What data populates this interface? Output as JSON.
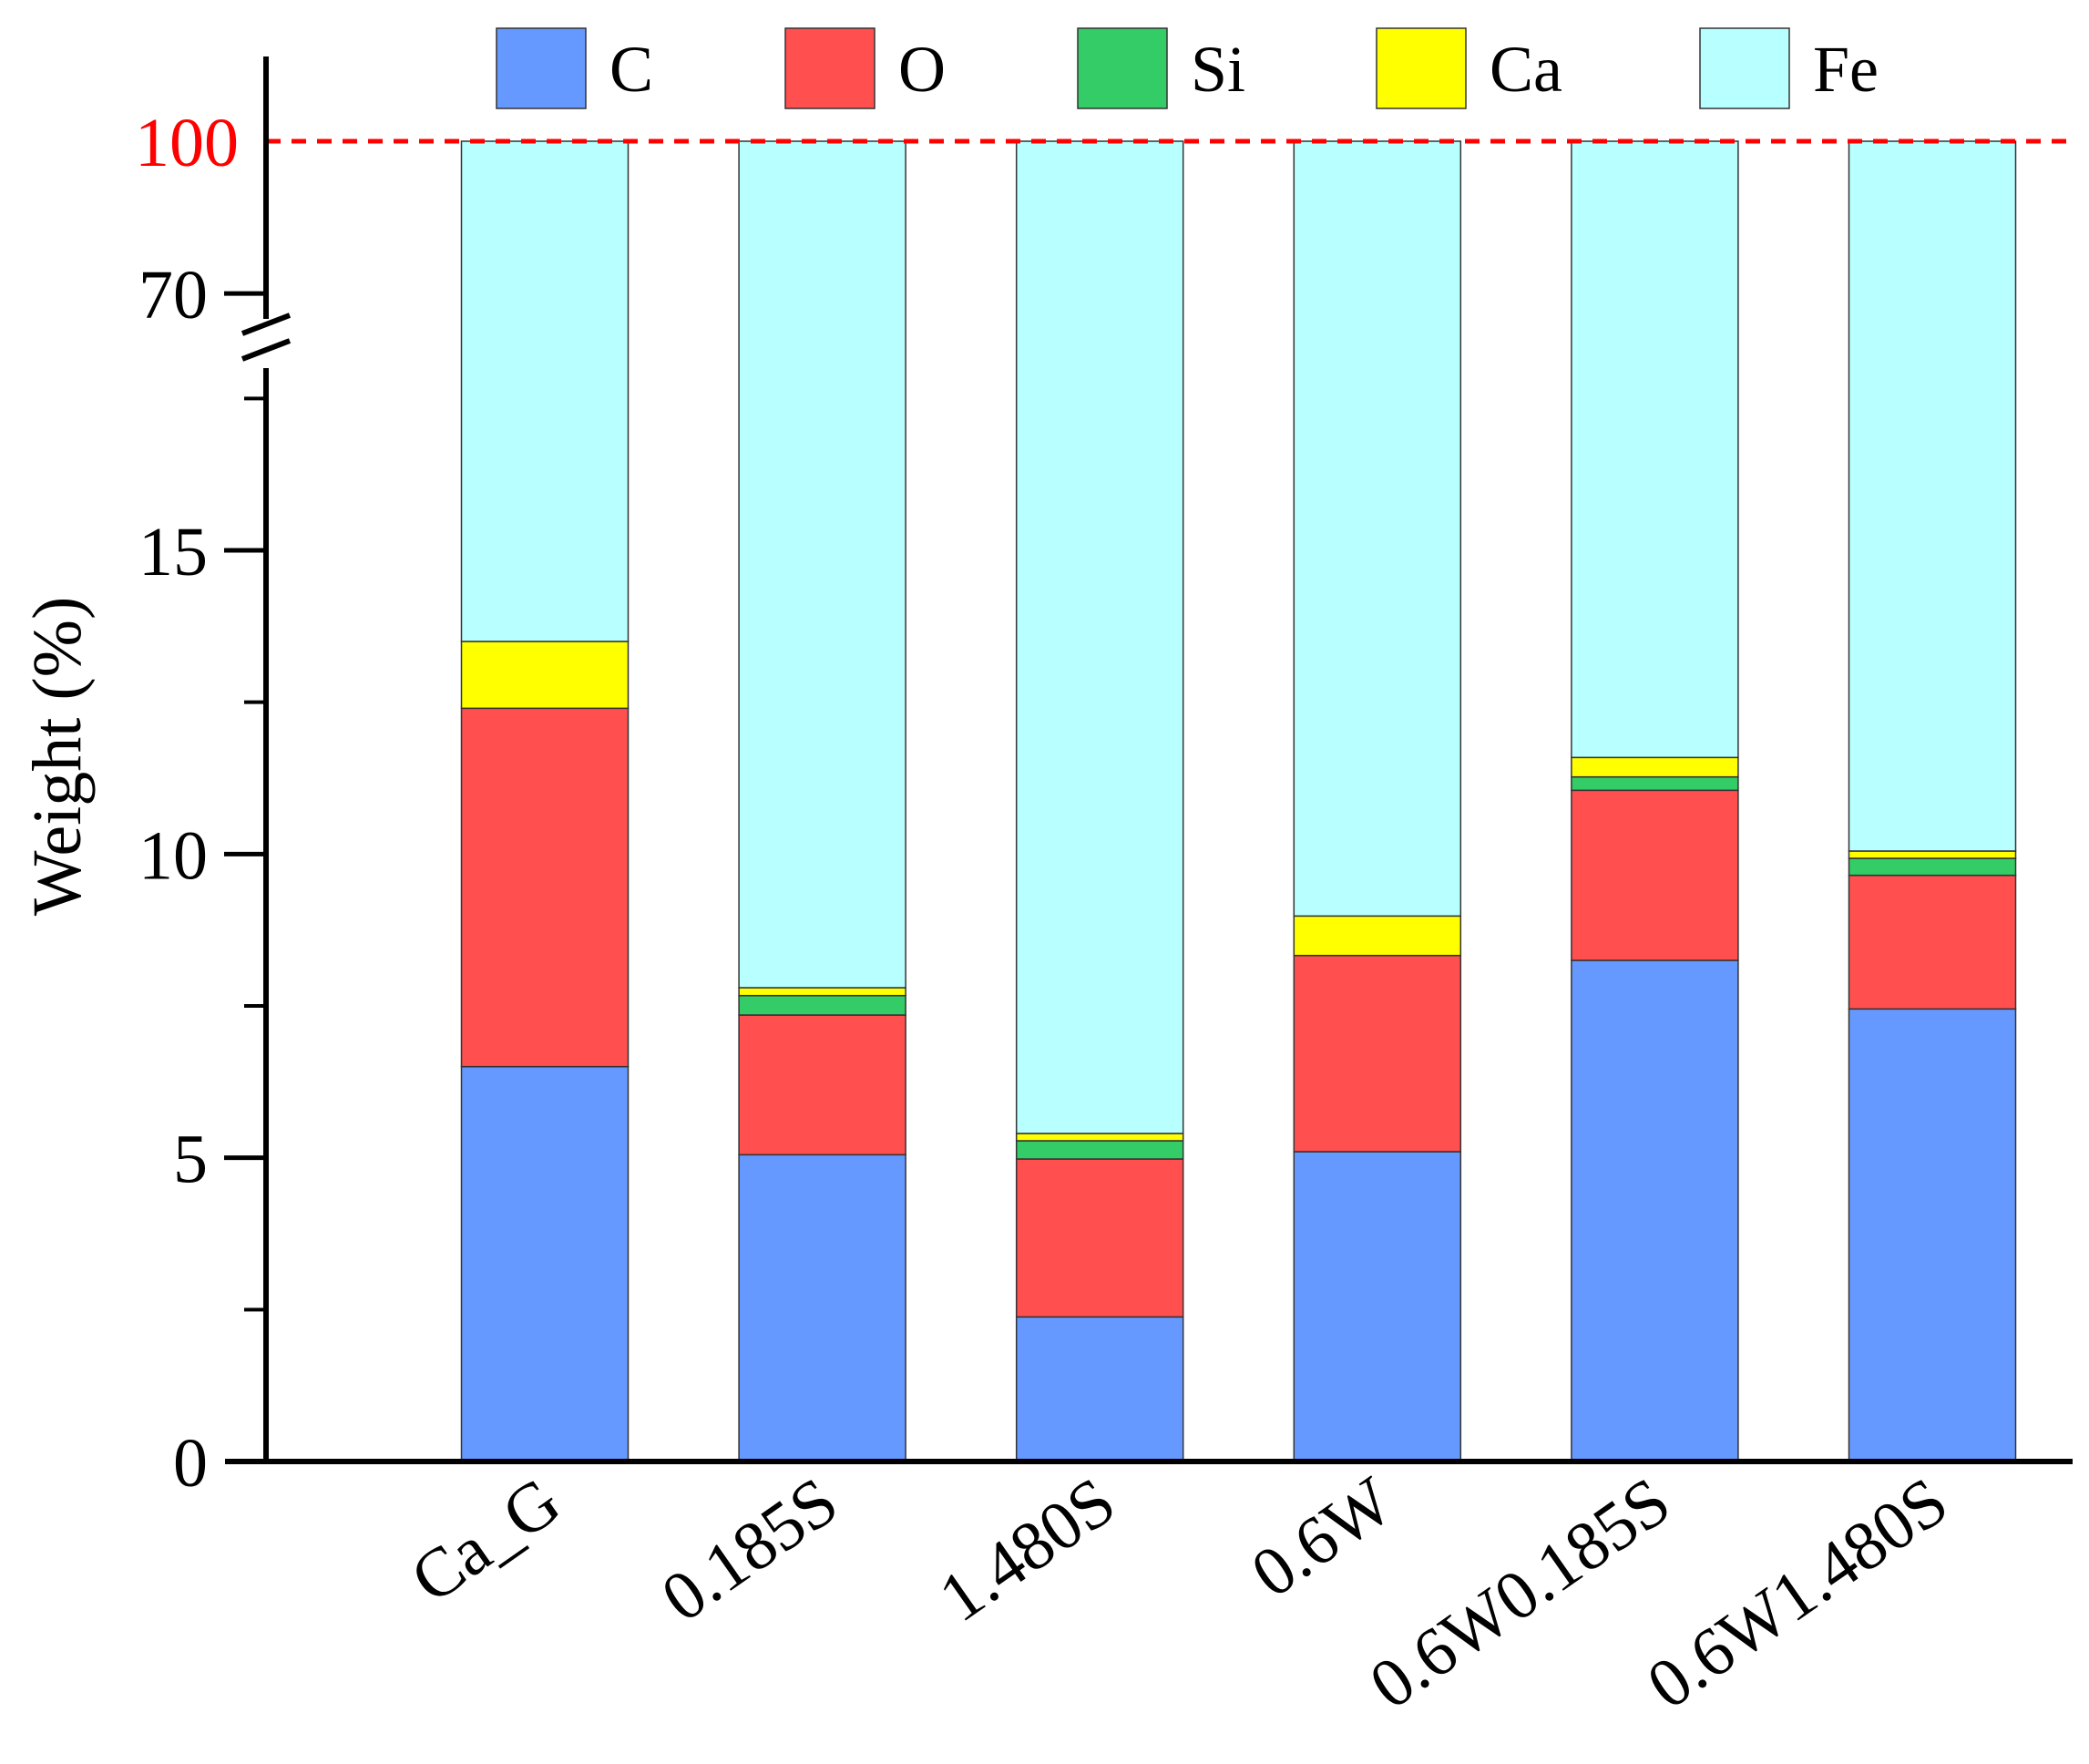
{
  "chart_data": {
    "type": "bar",
    "stacked": true,
    "title": "",
    "xlabel": "",
    "ylabel": "Weight (%)",
    "categories": [
      "Ca_G",
      "0.185S",
      "1.480S",
      "0.6W",
      "0.6W0.185S",
      "0.6W1.480S"
    ],
    "series": [
      {
        "name": "C",
        "color": "#6699FF",
        "values": [
          6.5,
          5.05,
          2.38,
          5.1,
          8.25,
          7.45
        ]
      },
      {
        "name": "O",
        "color": "#FF4F4F",
        "values": [
          5.9,
          2.3,
          2.6,
          3.23,
          2.8,
          2.2
        ]
      },
      {
        "name": "Si",
        "color": "#33CC66",
        "values": [
          0,
          0.32,
          0.3,
          0,
          0.22,
          0.28
        ]
      },
      {
        "name": "Ca",
        "color": "#FFFF00",
        "values": [
          1.1,
          0.13,
          0.12,
          0.65,
          0.32,
          0.12
        ]
      },
      {
        "name": "Fe",
        "color": "#B8FFFF",
        "values": [
          86.5,
          92.2,
          94.6,
          91.02,
          88.41,
          89.95
        ]
      }
    ],
    "y_axis": {
      "broken": true,
      "lower_range": [
        0,
        18
      ],
      "lower_ticks": [
        "0",
        "5",
        "10",
        "15"
      ],
      "upper_range": [
        65,
        100
      ],
      "upper_ticks": [
        "70"
      ]
    },
    "reference_line": {
      "value": 100,
      "label": "100",
      "color": "#FF0000",
      "style": "dashed"
    },
    "legend": {
      "position": "top",
      "entries": [
        "C",
        "O",
        "Si",
        "Ca",
        "Fe"
      ]
    }
  }
}
